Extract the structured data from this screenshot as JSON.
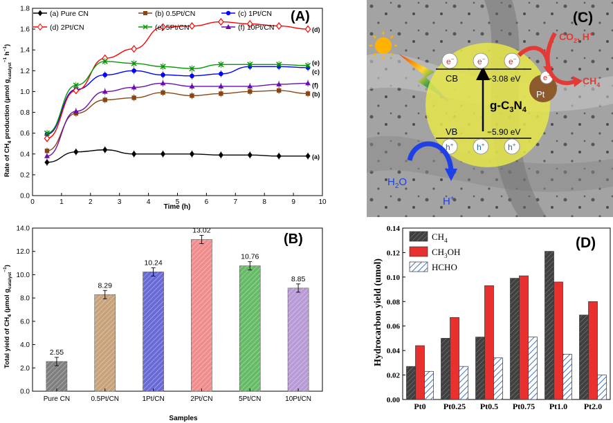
{
  "chart_data": [
    {
      "panel": "A",
      "type": "line",
      "title": "(A)",
      "xlabel": "Time (h)",
      "ylabel": "Rate of CH4 production (μmol g catalyst−1 h−1)",
      "ylabel_main": "Rate of CH",
      "ylabel_sub": "4",
      "ylabel_mid": " production (μmol g",
      "ylabel_sub2": "catalyst",
      "ylabel_sup": "−1",
      "ylabel_end": " h",
      "ylabel_sup2": "−1",
      "ylabel_close": ")",
      "xlim": [
        0,
        10
      ],
      "ylim": [
        0.0,
        1.8
      ],
      "xticks": [
        "0",
        "1",
        "2",
        "3",
        "4",
        "5",
        "6",
        "7",
        "8",
        "9",
        "10"
      ],
      "yticks": [
        "0.0",
        "0.2",
        "0.4",
        "0.6",
        "0.8",
        "1.0",
        "1.2",
        "1.4",
        "1.6",
        "1.8"
      ],
      "x": [
        0.5,
        1.5,
        2.5,
        3.5,
        4.5,
        5.5,
        6.5,
        7.5,
        8.5,
        9.5
      ],
      "series": [
        {
          "name": "(a) Pure CN",
          "label": "(a)",
          "color": "#000000",
          "marker": "diamond",
          "values": [
            0.32,
            0.42,
            0.44,
            0.4,
            0.4,
            0.4,
            0.39,
            0.39,
            0.38,
            0.38
          ]
        },
        {
          "name": "(b) 0.5Pt/CN",
          "label": "(b)",
          "color": "#8B4513",
          "marker": "square",
          "values": [
            0.43,
            0.79,
            0.92,
            0.94,
            0.99,
            0.96,
            0.98,
            1.0,
            1.01,
            0.98
          ]
        },
        {
          "name": "(c) 1Pt/CN",
          "label": "(c)",
          "color": "#0000FF",
          "marker": "circle",
          "values": [
            0.59,
            1.02,
            1.16,
            1.2,
            1.16,
            1.15,
            1.17,
            1.24,
            1.24,
            1.23
          ]
        },
        {
          "name": "(d) 2Pt/CN",
          "label": "(d)",
          "color": "#FF0000",
          "marker": "open-diamond",
          "values": [
            0.55,
            1.01,
            1.32,
            1.41,
            1.62,
            1.63,
            1.67,
            1.65,
            1.63,
            1.6
          ]
        },
        {
          "name": "(e) 5Pt/CN",
          "label": "(e)",
          "color": "#009900",
          "marker": "x",
          "values": [
            0.6,
            1.06,
            1.29,
            1.27,
            1.24,
            1.22,
            1.26,
            1.26,
            1.26,
            1.25
          ]
        },
        {
          "name": "(f) 10Pt/CN",
          "label": "(f)",
          "color": "#6A0DAD",
          "marker": "triangle",
          "values": [
            0.38,
            0.81,
            1.0,
            1.04,
            1.08,
            1.05,
            1.05,
            1.05,
            1.07,
            1.08
          ]
        }
      ]
    },
    {
      "panel": "B",
      "type": "bar",
      "title": "(B)",
      "xlabel": "Samples",
      "ylabel_main": "Total yield of CH",
      "ylabel_sub": "4",
      "ylabel_mid": " (μmol g",
      "ylabel_sub2": "catalyst",
      "ylabel_sup": "−1",
      "ylabel_close": ")",
      "ylim": [
        0.0,
        14.0
      ],
      "yticks": [
        "0.0",
        "2.0",
        "4.0",
        "6.0",
        "8.0",
        "10.0",
        "12.0",
        "14.0"
      ],
      "categories": [
        "Pure CN",
        "0.5Pt/CN",
        "1Pt/CN",
        "2Pt/CN",
        "5Pt/CN",
        "10Pt/CN"
      ],
      "values": [
        2.55,
        8.29,
        10.24,
        13.02,
        10.76,
        8.85
      ],
      "value_labels": [
        "2.55",
        "8.29",
        "10.24",
        "13.02",
        "10.76",
        "8.85"
      ],
      "colors": [
        "#7f7f7f",
        "#c8a27a",
        "#6a6ad6",
        "#f08c8c",
        "#66bb66",
        "#b79ad6"
      ]
    },
    {
      "panel": "D",
      "type": "bar",
      "title": "(D)",
      "xlabel": "",
      "ylabel": "Hydrocarbon yield (umol)",
      "ylim": [
        0.0,
        0.14
      ],
      "yticks": [
        "0.00",
        "0.02",
        "0.04",
        "0.06",
        "0.08",
        "0.10",
        "0.12",
        "0.14"
      ],
      "categories": [
        "Pt0",
        "Pt0.25",
        "Pt0.5",
        "Pt0.75",
        "Pt1.0",
        "Pt2.0"
      ],
      "series": [
        {
          "name": "CH4",
          "label_main": "CH",
          "label_sub": "4",
          "label_end": "",
          "color": "#404040",
          "values": [
            0.027,
            0.05,
            0.051,
            0.099,
            0.121,
            0.069
          ]
        },
        {
          "name": "CH3OH",
          "label_main": "CH",
          "label_sub": "3",
          "label_end": "OH",
          "color": "#e8312f",
          "values": [
            0.044,
            0.067,
            0.093,
            0.101,
            0.096,
            0.08
          ]
        },
        {
          "name": "HCHO",
          "label_main": "HCHO",
          "label_sub": "",
          "label_end": "",
          "color": "#9bb2e0",
          "values": [
            0.023,
            0.027,
            0.034,
            0.051,
            0.037,
            0.02
          ]
        }
      ]
    }
  ],
  "diagram_c": {
    "title": "(C)",
    "electron": "e",
    "electron_charge": "−",
    "hole": "h",
    "hole_charge": "+",
    "cb_label": "CB",
    "vb_label": "VB",
    "cb_energy": "−3.08 eV",
    "vb_energy": "−5.90 eV",
    "material_main": "g-C",
    "material_sub1": "3",
    "material_n": "N",
    "material_sub2": "4",
    "cocatalyst": "Pt",
    "reactant_main": "CO",
    "reactant_sub": "2",
    "reactant_end": ", H",
    "reactant_sup": "+",
    "product_main": "CH",
    "product_sub": "4",
    "water_main": "H",
    "water_sub": "2",
    "water_end": "O",
    "proton_main": "H",
    "proton_sup": "+"
  }
}
